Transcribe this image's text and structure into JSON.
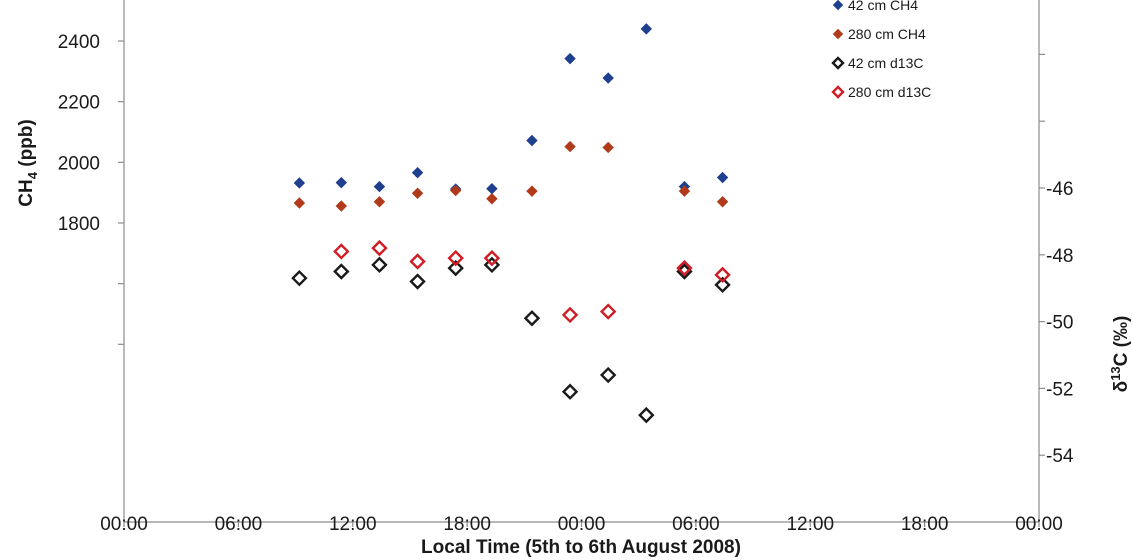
{
  "chart_data": {
    "type": "scatter",
    "title": "",
    "xlabel": "Local Time (5th to 6th August 2008)",
    "ylabel_left": "CH4 (ppb)",
    "ylabel_right": "δ13C (‰)",
    "x_ticks": [
      "00:00",
      "06:00",
      "12:00",
      "18:00",
      "00:00",
      "06:00",
      "12:00",
      "18:00",
      "00:00"
    ],
    "x_range_hours": [
      0,
      48
    ],
    "y_left": {
      "ticks": [
        1800,
        2000,
        2200,
        2400
      ],
      "range": [
        1400,
        2500
      ]
    },
    "y_right": {
      "ticks": [
        -46,
        -48,
        -50,
        -52,
        -54
      ],
      "range": [
        -54,
        -42
      ]
    },
    "grid": false,
    "legend_position": "top-right",
    "series": [
      {
        "name": "42 cm CH4",
        "axis": "left",
        "marker": "diamond-filled",
        "color": "#1f3f8f",
        "x": [
          9.2,
          11.4,
          13.4,
          15.4,
          17.4,
          19.3,
          21.4,
          23.4,
          25.4,
          27.4,
          29.4,
          31.4
        ],
        "y": [
          1932,
          1933,
          1920,
          1966,
          1912,
          1913,
          2072,
          2342,
          2278,
          2440,
          1920,
          1950
        ]
      },
      {
        "name": "280 cm CH4",
        "axis": "left",
        "marker": "diamond-filled",
        "color": "#b03a1a",
        "x": [
          9.2,
          11.4,
          13.4,
          15.4,
          17.4,
          19.3,
          21.4,
          23.4,
          25.4,
          29.4,
          31.4
        ],
        "y": [
          1866,
          1856,
          1870,
          1898,
          1907,
          1880,
          1905,
          2052,
          2049,
          1905,
          1870
        ]
      },
      {
        "name": "42 cm d13C",
        "axis": "right",
        "marker": "diamond-open",
        "color": "#1a1a1a",
        "x": [
          9.2,
          11.4,
          13.4,
          15.4,
          17.4,
          19.3,
          21.4,
          23.4,
          25.4,
          27.4,
          29.4,
          31.4
        ],
        "y": [
          -48.7,
          -48.5,
          -48.3,
          -48.8,
          -48.4,
          -48.3,
          -49.9,
          -52.1,
          -51.6,
          -52.8,
          -48.5,
          -48.9
        ]
      },
      {
        "name": "280 cm d13C",
        "axis": "right",
        "marker": "diamond-open",
        "color": "#d01c24",
        "x": [
          11.4,
          13.4,
          15.4,
          17.4,
          19.3,
          23.4,
          25.4,
          29.4,
          31.4
        ],
        "y": [
          -47.9,
          -47.8,
          -48.2,
          -48.1,
          -48.1,
          -49.8,
          -49.7,
          -48.4,
          -48.6
        ]
      }
    ]
  }
}
